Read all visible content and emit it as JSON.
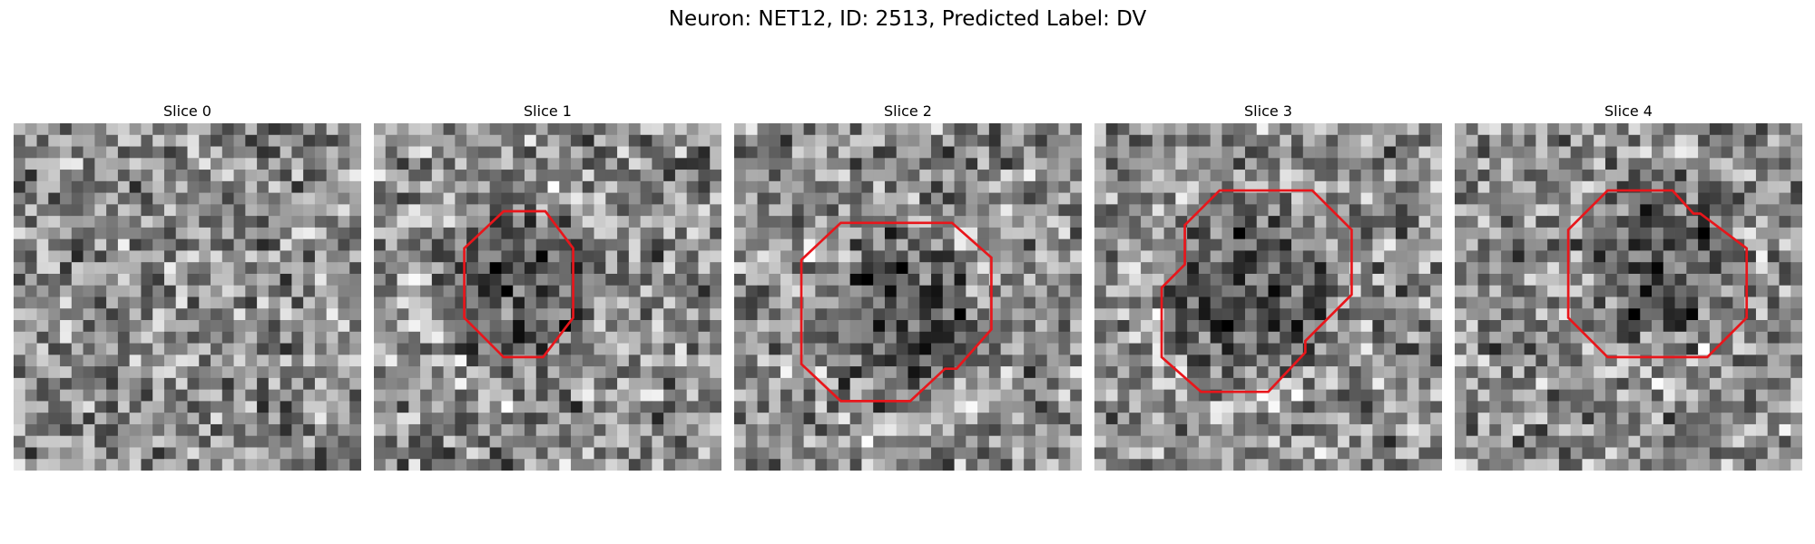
{
  "figure": {
    "title": "Neuron: NET12, ID: 2513, Predicted Label: DV",
    "contour_color": "#e8161b",
    "colormap": "gray",
    "grid_size": 30
  },
  "panels": [
    {
      "title": "Slice 0",
      "contour": []
    },
    {
      "title": "Slice 1",
      "contour": [
        [
          11.2,
          7.6
        ],
        [
          14.8,
          7.6
        ],
        [
          17.2,
          10.8
        ],
        [
          17.2,
          16.8
        ],
        [
          14.6,
          20.2
        ],
        [
          11.2,
          20.2
        ],
        [
          7.8,
          16.8
        ],
        [
          7.8,
          10.8
        ]
      ]
    },
    {
      "title": "Slice 2",
      "contour": [
        [
          9.2,
          8.6
        ],
        [
          18.8,
          8.6
        ],
        [
          22.2,
          11.6
        ],
        [
          22.2,
          17.8
        ],
        [
          19.2,
          21.2
        ],
        [
          18.2,
          21.2
        ],
        [
          15.2,
          24.0
        ],
        [
          9.2,
          24.0
        ],
        [
          5.8,
          20.8
        ],
        [
          5.8,
          11.8
        ]
      ]
    },
    {
      "title": "Slice 3",
      "contour": [
        [
          10.8,
          5.8
        ],
        [
          18.8,
          5.8
        ],
        [
          22.2,
          9.2
        ],
        [
          22.2,
          14.8
        ],
        [
          18.2,
          18.8
        ],
        [
          18.2,
          19.8
        ],
        [
          15.0,
          23.2
        ],
        [
          9.2,
          23.2
        ],
        [
          5.8,
          20.2
        ],
        [
          5.8,
          14.2
        ],
        [
          7.8,
          12.2
        ],
        [
          7.8,
          8.8
        ]
      ]
    },
    {
      "title": "Slice 4",
      "contour": [
        [
          13.2,
          5.8
        ],
        [
          18.8,
          5.8
        ],
        [
          20.6,
          7.8
        ],
        [
          21.2,
          7.8
        ],
        [
          25.2,
          10.8
        ],
        [
          25.2,
          16.8
        ],
        [
          21.8,
          20.2
        ],
        [
          13.2,
          20.2
        ],
        [
          9.8,
          16.8
        ],
        [
          9.8,
          9.2
        ]
      ]
    }
  ]
}
